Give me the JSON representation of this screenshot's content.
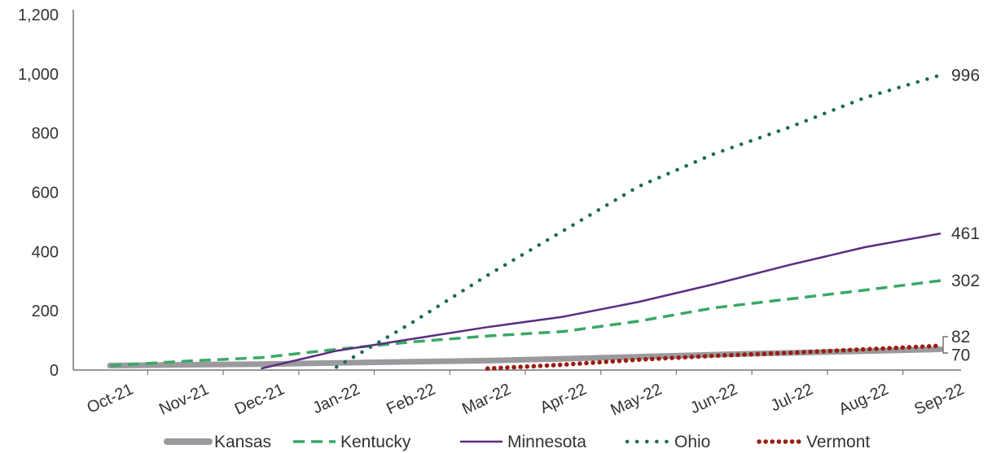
{
  "chart_data": {
    "type": "line",
    "categories": [
      "Oct-21",
      "Nov-21",
      "Dec-21",
      "Jan-22",
      "Feb-22",
      "Mar-22",
      "Apr-22",
      "May-22",
      "Jun-22",
      "Jul-22",
      "Aug-22",
      "Sep-22"
    ],
    "ylim": [
      0,
      1200
    ],
    "yticks": [
      "0",
      "200",
      "400",
      "600",
      "800",
      "1,000",
      "1,200"
    ],
    "grid": false,
    "legend": "bottom",
    "series": [
      {
        "name": "Kansas",
        "color": "#9a9a9e",
        "style": "thick",
        "values": [
          15,
          18,
          20,
          24,
          28,
          32,
          38,
          45,
          52,
          58,
          64,
          70
        ]
      },
      {
        "name": "Kentucky",
        "color": "#3aa866",
        "style": "dashed",
        "values": [
          15,
          30,
          42,
          70,
          95,
          115,
          130,
          165,
          210,
          240,
          270,
          302
        ]
      },
      {
        "name": "Minnesota",
        "color": "#5a2d82",
        "style": "solid",
        "values": [
          null,
          null,
          5,
          65,
          105,
          145,
          180,
          230,
          290,
          355,
          415,
          461
        ]
      },
      {
        "name": "Ohio",
        "color": "#1d6a55",
        "style": "dotted",
        "values": [
          null,
          null,
          null,
          10,
          160,
          320,
          470,
          620,
          730,
          820,
          920,
          996
        ]
      },
      {
        "name": "Vermont",
        "color": "#9b1c10",
        "style": "dotted-thick",
        "values": [
          null,
          null,
          null,
          null,
          null,
          5,
          18,
          35,
          48,
          58,
          70,
          82
        ]
      }
    ],
    "end_labels": [
      {
        "series": "Ohio",
        "text": "996"
      },
      {
        "series": "Minnesota",
        "text": "461"
      },
      {
        "series": "Kentucky",
        "text": "302"
      },
      {
        "series": "Vermont",
        "text": "82"
      },
      {
        "series": "Kansas",
        "text": "70"
      }
    ]
  }
}
